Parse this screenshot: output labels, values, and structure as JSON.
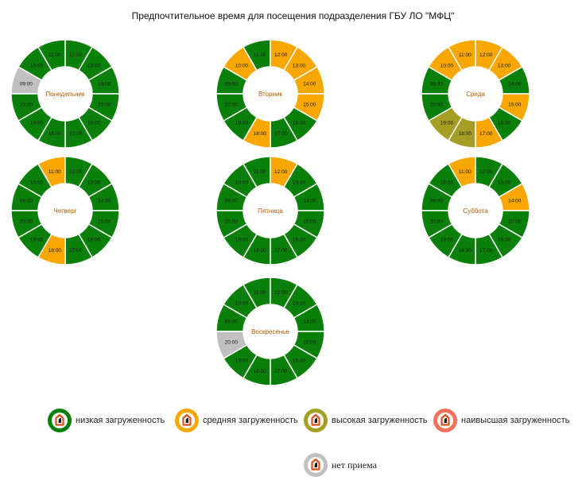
{
  "title": "Предпочтительное время для посещения подразделения ГБУ ЛО \"МФЦ\"",
  "colors": {
    "low": "#0a800a",
    "medium": "#f7a700",
    "high": "#a49e24",
    "highest": "#f0705a",
    "closed": "#c0c0c0",
    "day_label": "#b05a00"
  },
  "chart_data": [
    {
      "type": "pie",
      "day": "Понедельник",
      "slices": [
        {
          "label": "09:00",
          "status": "closed"
        },
        {
          "label": "10:00",
          "status": "low"
        },
        {
          "label": "11:00",
          "status": "low"
        },
        {
          "label": "12:00",
          "status": "low"
        },
        {
          "label": "13:00",
          "status": "low"
        },
        {
          "label": "14:00",
          "status": "low"
        },
        {
          "label": "15:00",
          "status": "low"
        },
        {
          "label": "16:00",
          "status": "low"
        },
        {
          "label": "17:00",
          "status": "low"
        },
        {
          "label": "18:00",
          "status": "low"
        },
        {
          "label": "19:00",
          "status": "low"
        },
        {
          "label": "20:00",
          "status": "low"
        }
      ]
    },
    {
      "type": "pie",
      "day": "Вторник",
      "slices": [
        {
          "label": "09:00",
          "status": "low"
        },
        {
          "label": "10:00",
          "status": "medium"
        },
        {
          "label": "11:00",
          "status": "low"
        },
        {
          "label": "12:00",
          "status": "medium"
        },
        {
          "label": "13:00",
          "status": "medium"
        },
        {
          "label": "14:00",
          "status": "medium"
        },
        {
          "label": "15:00",
          "status": "medium"
        },
        {
          "label": "16:00",
          "status": "low"
        },
        {
          "label": "17:00",
          "status": "low"
        },
        {
          "label": "18:00",
          "status": "medium"
        },
        {
          "label": "19:00",
          "status": "low"
        },
        {
          "label": "20:00",
          "status": "low"
        }
      ]
    },
    {
      "type": "pie",
      "day": "Среда",
      "slices": [
        {
          "label": "09:00",
          "status": "low"
        },
        {
          "label": "10:00",
          "status": "medium"
        },
        {
          "label": "11:00",
          "status": "medium"
        },
        {
          "label": "12:00",
          "status": "medium"
        },
        {
          "label": "13:00",
          "status": "medium"
        },
        {
          "label": "14:00",
          "status": "low"
        },
        {
          "label": "15:00",
          "status": "medium"
        },
        {
          "label": "16:00",
          "status": "low"
        },
        {
          "label": "17:00",
          "status": "medium"
        },
        {
          "label": "18:00",
          "status": "high"
        },
        {
          "label": "19:00",
          "status": "high"
        },
        {
          "label": "20:00",
          "status": "low"
        }
      ]
    },
    {
      "type": "pie",
      "day": "Четверг",
      "slices": [
        {
          "label": "09:00",
          "status": "low"
        },
        {
          "label": "10:00",
          "status": "low"
        },
        {
          "label": "11:00",
          "status": "medium"
        },
        {
          "label": "12:00",
          "status": "low"
        },
        {
          "label": "13:00",
          "status": "low"
        },
        {
          "label": "14:00",
          "status": "low"
        },
        {
          "label": "15:00",
          "status": "low"
        },
        {
          "label": "16:00",
          "status": "low"
        },
        {
          "label": "17:00",
          "status": "low"
        },
        {
          "label": "18:00",
          "status": "medium"
        },
        {
          "label": "19:00",
          "status": "low"
        },
        {
          "label": "20:00",
          "status": "low"
        }
      ]
    },
    {
      "type": "pie",
      "day": "Пятница",
      "slices": [
        {
          "label": "09:00",
          "status": "low"
        },
        {
          "label": "10:00",
          "status": "low"
        },
        {
          "label": "11:00",
          "status": "low"
        },
        {
          "label": "12:00",
          "status": "medium"
        },
        {
          "label": "13:00",
          "status": "low"
        },
        {
          "label": "14:00",
          "status": "low"
        },
        {
          "label": "15:00",
          "status": "low"
        },
        {
          "label": "16:00",
          "status": "low"
        },
        {
          "label": "17:00",
          "status": "low"
        },
        {
          "label": "18:00",
          "status": "low"
        },
        {
          "label": "19:00",
          "status": "low"
        },
        {
          "label": "20:00",
          "status": "low"
        }
      ]
    },
    {
      "type": "pie",
      "day": "Суббота",
      "slices": [
        {
          "label": "09:00",
          "status": "low"
        },
        {
          "label": "10:00",
          "status": "low"
        },
        {
          "label": "11:00",
          "status": "medium"
        },
        {
          "label": "12:00",
          "status": "low"
        },
        {
          "label": "13:00",
          "status": "low"
        },
        {
          "label": "14:00",
          "status": "medium"
        },
        {
          "label": "15:00",
          "status": "low"
        },
        {
          "label": "16:00",
          "status": "low"
        },
        {
          "label": "17:00",
          "status": "low"
        },
        {
          "label": "18:00",
          "status": "low"
        },
        {
          "label": "19:00",
          "status": "low"
        },
        {
          "label": "20:00",
          "status": "low"
        }
      ]
    },
    {
      "type": "pie",
      "day": "Воскресенье",
      "slices": [
        {
          "label": "09:00",
          "status": "low"
        },
        {
          "label": "10:00",
          "status": "low"
        },
        {
          "label": "11:00",
          "status": "low"
        },
        {
          "label": "12:00",
          "status": "low"
        },
        {
          "label": "13:00",
          "status": "low"
        },
        {
          "label": "14:00",
          "status": "low"
        },
        {
          "label": "15:00",
          "status": "low"
        },
        {
          "label": "16:00",
          "status": "low"
        },
        {
          "label": "17:00",
          "status": "low"
        },
        {
          "label": "18:00",
          "status": "low"
        },
        {
          "label": "19:00",
          "status": "low"
        },
        {
          "label": "20:00",
          "status": "closed"
        }
      ]
    }
  ],
  "legend": [
    {
      "key": "low",
      "label": "низкая загруженность"
    },
    {
      "key": "medium",
      "label": "средняя загруженность"
    },
    {
      "key": "high",
      "label": "высокая загруженность"
    },
    {
      "key": "highest",
      "label": "наивысшая загруженность"
    },
    {
      "key": "closed",
      "label": "нет приема"
    }
  ]
}
